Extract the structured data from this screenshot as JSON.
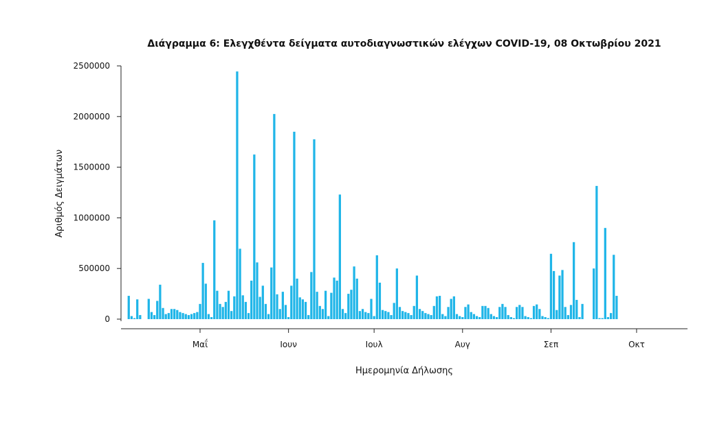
{
  "chart_data": {
    "type": "bar",
    "title": "Διάγραμμα 6: Ελεγχθέντα δείγματα αυτοδιαγνωστικών ελέγχων COVID-19, 08 Οκτωβρίου 2021",
    "xlabel": "Ημερομηνία Δήλωσης",
    "ylabel": "Αριθμός Δειγμάτων",
    "ylim": [
      0,
      2500000
    ],
    "yticks": [
      "0",
      "500000",
      "1000000",
      "1500000",
      "2000000",
      "2500000"
    ],
    "xticks": [
      {
        "label": "Μαΐ",
        "date": "2021-05-01"
      },
      {
        "label": "Ιουν",
        "date": "2021-06-01"
      },
      {
        "label": "Ιουλ",
        "date": "2021-07-01"
      },
      {
        "label": "Αυγ",
        "date": "2021-08-01"
      },
      {
        "label": "Σεπ",
        "date": "2021-09-01"
      },
      {
        "label": "Οκτ",
        "date": "2021-10-01"
      }
    ],
    "bar_color": "#1FB5E8",
    "grid": false,
    "series": [
      {
        "values": [
          [
            "2021-04-06",
            230000
          ],
          [
            "2021-04-07",
            30000
          ],
          [
            "2021-04-08",
            10000
          ],
          [
            "2021-04-09",
            195000
          ],
          [
            "2021-04-10",
            40000
          ],
          [
            "2021-04-13",
            200000
          ],
          [
            "2021-04-14",
            70000
          ],
          [
            "2021-04-15",
            40000
          ],
          [
            "2021-04-16",
            180000
          ],
          [
            "2021-04-17",
            340000
          ],
          [
            "2021-04-18",
            110000
          ],
          [
            "2021-04-19",
            50000
          ],
          [
            "2021-04-20",
            60000
          ],
          [
            "2021-04-21",
            100000
          ],
          [
            "2021-04-22",
            100000
          ],
          [
            "2021-04-23",
            90000
          ],
          [
            "2021-04-24",
            70000
          ],
          [
            "2021-04-25",
            60000
          ],
          [
            "2021-04-26",
            50000
          ],
          [
            "2021-04-27",
            40000
          ],
          [
            "2021-04-28",
            50000
          ],
          [
            "2021-04-29",
            60000
          ],
          [
            "2021-04-30",
            70000
          ],
          [
            "2021-05-01",
            150000
          ],
          [
            "2021-05-02",
            555000
          ],
          [
            "2021-05-03",
            350000
          ],
          [
            "2021-05-04",
            50000
          ],
          [
            "2021-05-05",
            20000
          ],
          [
            "2021-05-06",
            975000
          ],
          [
            "2021-05-07",
            280000
          ],
          [
            "2021-05-08",
            150000
          ],
          [
            "2021-05-09",
            120000
          ],
          [
            "2021-05-10",
            170000
          ],
          [
            "2021-05-11",
            280000
          ],
          [
            "2021-05-12",
            80000
          ],
          [
            "2021-05-13",
            225000
          ],
          [
            "2021-05-14",
            2445000
          ],
          [
            "2021-05-15",
            695000
          ],
          [
            "2021-05-16",
            235000
          ],
          [
            "2021-05-17",
            170000
          ],
          [
            "2021-05-18",
            60000
          ],
          [
            "2021-05-19",
            380000
          ],
          [
            "2021-05-20",
            1625000
          ],
          [
            "2021-05-21",
            560000
          ],
          [
            "2021-05-22",
            220000
          ],
          [
            "2021-05-23",
            330000
          ],
          [
            "2021-05-24",
            150000
          ],
          [
            "2021-05-25",
            50000
          ],
          [
            "2021-05-26",
            510000
          ],
          [
            "2021-05-27",
            2025000
          ],
          [
            "2021-05-28",
            245000
          ],
          [
            "2021-05-29",
            100000
          ],
          [
            "2021-05-30",
            270000
          ],
          [
            "2021-05-31",
            140000
          ],
          [
            "2021-06-01",
            20000
          ],
          [
            "2021-06-02",
            330000
          ],
          [
            "2021-06-03",
            1850000
          ],
          [
            "2021-06-04",
            400000
          ],
          [
            "2021-06-05",
            215000
          ],
          [
            "2021-06-06",
            195000
          ],
          [
            "2021-06-07",
            170000
          ],
          [
            "2021-06-08",
            40000
          ],
          [
            "2021-06-09",
            465000
          ],
          [
            "2021-06-10",
            1775000
          ],
          [
            "2021-06-11",
            270000
          ],
          [
            "2021-06-12",
            130000
          ],
          [
            "2021-06-13",
            100000
          ],
          [
            "2021-06-14",
            280000
          ],
          [
            "2021-06-15",
            30000
          ],
          [
            "2021-06-16",
            260000
          ],
          [
            "2021-06-17",
            410000
          ],
          [
            "2021-06-18",
            380000
          ],
          [
            "2021-06-19",
            1230000
          ],
          [
            "2021-06-20",
            100000
          ],
          [
            "2021-06-21",
            60000
          ],
          [
            "2021-06-22",
            250000
          ],
          [
            "2021-06-23",
            290000
          ],
          [
            "2021-06-24",
            520000
          ],
          [
            "2021-06-25",
            400000
          ],
          [
            "2021-06-26",
            80000
          ],
          [
            "2021-06-27",
            100000
          ],
          [
            "2021-06-28",
            70000
          ],
          [
            "2021-06-29",
            60000
          ],
          [
            "2021-06-30",
            200000
          ],
          [
            "2021-07-01",
            30000
          ],
          [
            "2021-07-02",
            630000
          ],
          [
            "2021-07-03",
            360000
          ],
          [
            "2021-07-04",
            90000
          ],
          [
            "2021-07-05",
            80000
          ],
          [
            "2021-07-06",
            70000
          ],
          [
            "2021-07-07",
            40000
          ],
          [
            "2021-07-08",
            160000
          ],
          [
            "2021-07-09",
            500000
          ],
          [
            "2021-07-10",
            120000
          ],
          [
            "2021-07-11",
            80000
          ],
          [
            "2021-07-12",
            70000
          ],
          [
            "2021-07-13",
            60000
          ],
          [
            "2021-07-14",
            40000
          ],
          [
            "2021-07-15",
            130000
          ],
          [
            "2021-07-16",
            430000
          ],
          [
            "2021-07-17",
            100000
          ],
          [
            "2021-07-18",
            80000
          ],
          [
            "2021-07-19",
            60000
          ],
          [
            "2021-07-20",
            50000
          ],
          [
            "2021-07-21",
            40000
          ],
          [
            "2021-07-22",
            130000
          ],
          [
            "2021-07-23",
            225000
          ],
          [
            "2021-07-24",
            230000
          ],
          [
            "2021-07-25",
            50000
          ],
          [
            "2021-07-26",
            30000
          ],
          [
            "2021-07-27",
            120000
          ],
          [
            "2021-07-28",
            200000
          ],
          [
            "2021-07-29",
            225000
          ],
          [
            "2021-07-30",
            50000
          ],
          [
            "2021-07-31",
            30000
          ],
          [
            "2021-08-01",
            20000
          ],
          [
            "2021-08-02",
            120000
          ],
          [
            "2021-08-03",
            145000
          ],
          [
            "2021-08-04",
            70000
          ],
          [
            "2021-08-05",
            50000
          ],
          [
            "2021-08-06",
            30000
          ],
          [
            "2021-08-07",
            20000
          ],
          [
            "2021-08-08",
            130000
          ],
          [
            "2021-08-09",
            130000
          ],
          [
            "2021-08-10",
            110000
          ],
          [
            "2021-08-11",
            50000
          ],
          [
            "2021-08-12",
            30000
          ],
          [
            "2021-08-13",
            20000
          ],
          [
            "2021-08-14",
            120000
          ],
          [
            "2021-08-15",
            150000
          ],
          [
            "2021-08-16",
            120000
          ],
          [
            "2021-08-17",
            40000
          ],
          [
            "2021-08-18",
            20000
          ],
          [
            "2021-08-19",
            10000
          ],
          [
            "2021-08-20",
            120000
          ],
          [
            "2021-08-21",
            140000
          ],
          [
            "2021-08-22",
            120000
          ],
          [
            "2021-08-23",
            30000
          ],
          [
            "2021-08-24",
            20000
          ],
          [
            "2021-08-25",
            10000
          ],
          [
            "2021-08-26",
            130000
          ],
          [
            "2021-08-27",
            145000
          ],
          [
            "2021-08-28",
            100000
          ],
          [
            "2021-08-29",
            30000
          ],
          [
            "2021-08-30",
            20000
          ],
          [
            "2021-08-31",
            10000
          ],
          [
            "2021-09-01",
            645000
          ],
          [
            "2021-09-02",
            475000
          ],
          [
            "2021-09-03",
            90000
          ],
          [
            "2021-09-04",
            430000
          ],
          [
            "2021-09-05",
            485000
          ],
          [
            "2021-09-06",
            120000
          ],
          [
            "2021-09-07",
            40000
          ],
          [
            "2021-09-08",
            140000
          ],
          [
            "2021-09-09",
            760000
          ],
          [
            "2021-09-10",
            190000
          ],
          [
            "2021-09-11",
            20000
          ],
          [
            "2021-09-12",
            150000
          ],
          [
            "2021-09-16",
            500000
          ],
          [
            "2021-09-17",
            1315000
          ],
          [
            "2021-09-18",
            10000
          ],
          [
            "2021-09-19",
            10000
          ],
          [
            "2021-09-20",
            900000
          ],
          [
            "2021-09-21",
            20000
          ],
          [
            "2021-09-22",
            60000
          ],
          [
            "2021-09-23",
            635000
          ],
          [
            "2021-09-24",
            230000
          ]
        ]
      }
    ]
  }
}
